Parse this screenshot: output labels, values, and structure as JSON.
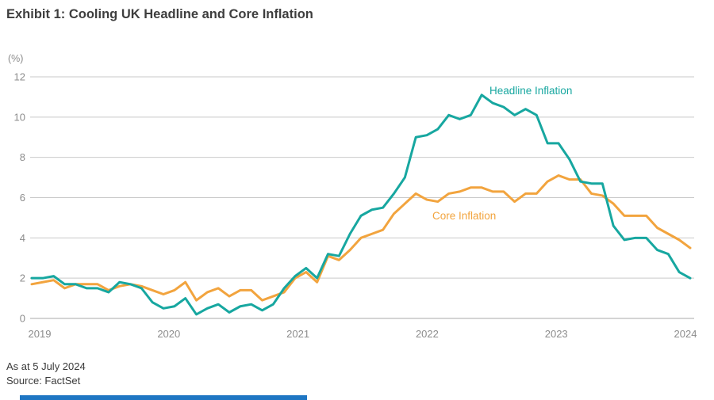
{
  "page": {
    "title": "Exhibit 1: Cooling UK Headline and Core Inflation",
    "footer": {
      "as_at": "As at 5 July 2024",
      "source": "Source: FactSet"
    },
    "accent_bar_color": "#1e76c3"
  },
  "chart_data": {
    "type": "line",
    "title": "Exhibit 1: Cooling UK Headline and Core Inflation",
    "y_axis_unit_label": "(%)",
    "y_ticks": [
      12,
      10,
      8,
      6,
      4,
      2,
      0
    ],
    "ylim": [
      0,
      12
    ],
    "x_tick_labels": [
      "2019",
      "2020",
      "2021",
      "2022",
      "2023",
      "2024"
    ],
    "frequency": "monthly",
    "x_start": "2019-05",
    "x_end": "2024-05",
    "grid": "horizontal-only",
    "legend": "inline-labels",
    "series": [
      {
        "name": "Headline Inflation",
        "color": "#17a7a0",
        "values": [
          2.0,
          2.0,
          2.1,
          1.7,
          1.7,
          1.5,
          1.5,
          1.3,
          1.8,
          1.7,
          1.5,
          0.8,
          0.5,
          0.6,
          1.0,
          0.2,
          0.5,
          0.7,
          0.3,
          0.6,
          0.7,
          0.4,
          0.7,
          1.5,
          2.1,
          2.5,
          2.0,
          3.2,
          3.1,
          4.2,
          5.1,
          5.4,
          5.5,
          6.2,
          7.0,
          9.0,
          9.1,
          9.4,
          10.1,
          9.9,
          10.1,
          11.1,
          10.7,
          10.5,
          10.1,
          10.4,
          10.1,
          8.7,
          8.7,
          7.9,
          6.8,
          6.7,
          6.7,
          4.6,
          3.9,
          4.0,
          4.0,
          3.4,
          3.2,
          2.3,
          2.0
        ]
      },
      {
        "name": "Core Inflation",
        "color": "#f2a43e",
        "values": [
          1.7,
          1.8,
          1.9,
          1.5,
          1.7,
          1.7,
          1.7,
          1.4,
          1.6,
          1.7,
          1.6,
          1.4,
          1.2,
          1.4,
          1.8,
          0.9,
          1.3,
          1.5,
          1.1,
          1.4,
          1.4,
          0.9,
          1.1,
          1.3,
          2.0,
          2.3,
          1.8,
          3.1,
          2.9,
          3.4,
          4.0,
          4.2,
          4.4,
          5.2,
          5.7,
          6.2,
          5.9,
          5.8,
          6.2,
          6.3,
          6.5,
          6.5,
          6.3,
          6.3,
          5.8,
          6.2,
          6.2,
          6.8,
          7.1,
          6.9,
          6.9,
          6.2,
          6.1,
          5.7,
          5.1,
          5.1,
          5.1,
          4.5,
          4.2,
          3.9,
          3.5
        ]
      }
    ]
  }
}
